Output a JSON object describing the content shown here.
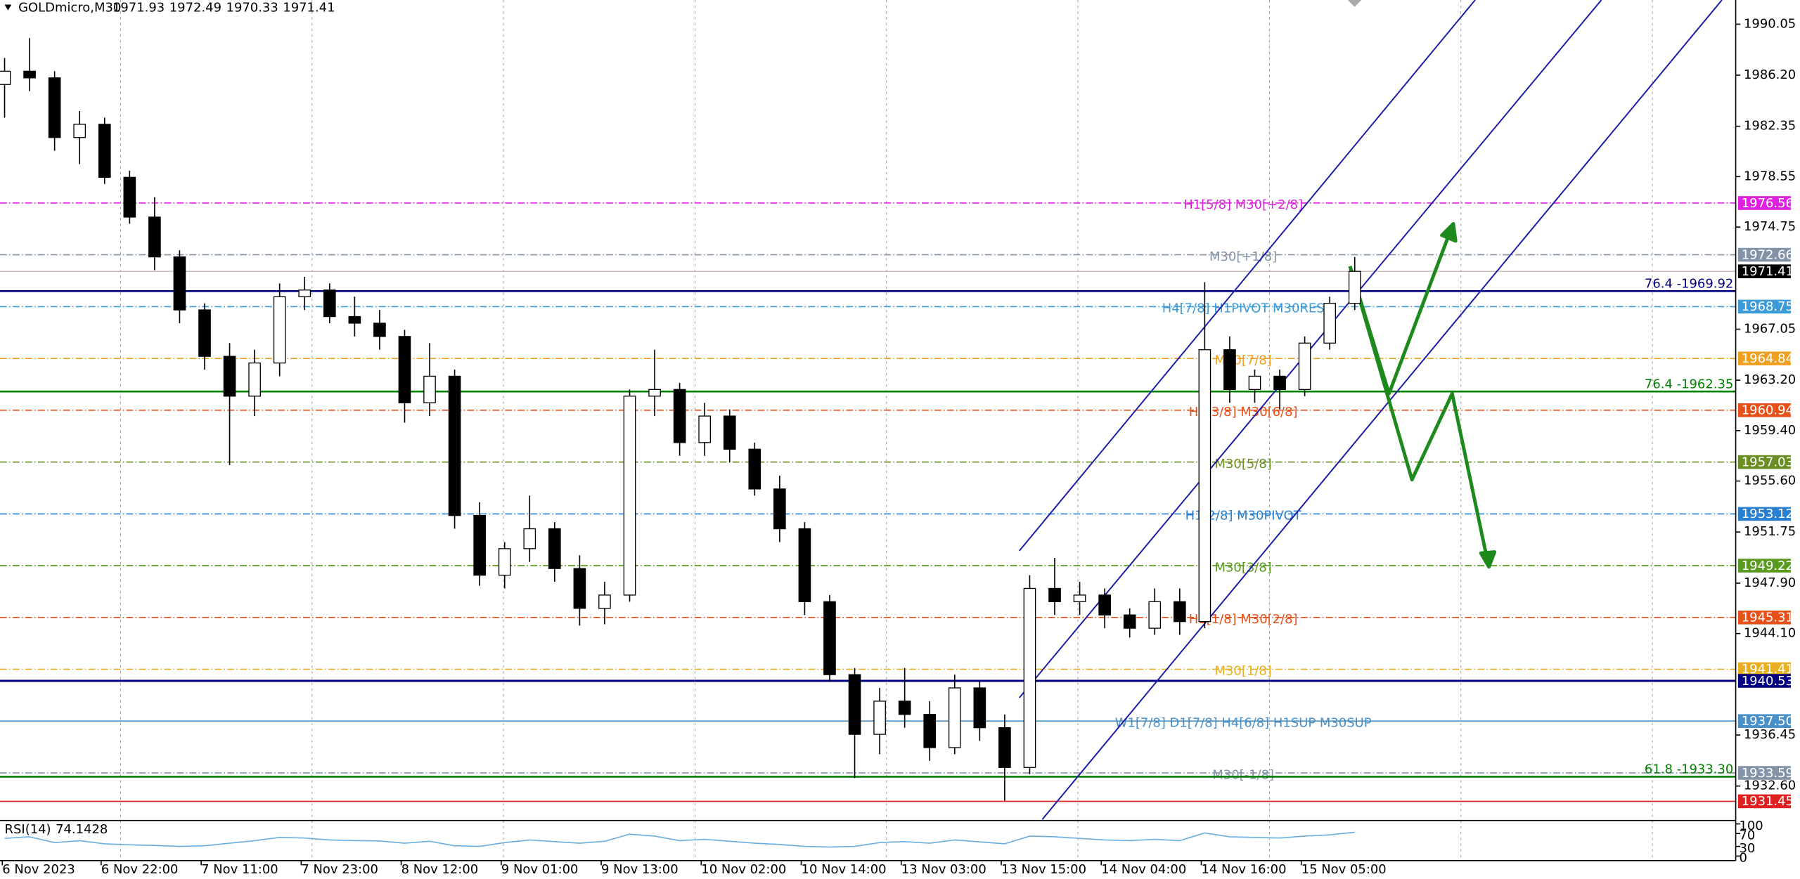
{
  "chart_data": {
    "type": "candlestick",
    "symbol": "GOLDmicro,M30",
    "ohlc_header": [
      1971.93,
      1972.49,
      1970.33,
      1971.41
    ],
    "categories": [
      "6 Nov 2023",
      null,
      null,
      null,
      "6 Nov 22:00",
      null,
      null,
      null,
      "7 Nov 11:00",
      null,
      null,
      null,
      "7 Nov 23:00",
      null,
      null,
      null,
      "8 Nov 12:00",
      null,
      null,
      null,
      "9 Nov 01:00",
      null,
      null,
      null,
      "9 Nov 13:00",
      null,
      null,
      null,
      "10 Nov 02:00",
      null,
      null,
      null,
      "10 Nov 14:00",
      null,
      null,
      null,
      "13 Nov 03:00",
      null,
      null,
      null,
      "13 Nov 15:00",
      null,
      null,
      null,
      "14 Nov 04:00",
      null,
      null,
      null,
      "14 Nov 16:00",
      null,
      null,
      null,
      "15 Nov 05:00",
      null,
      null
    ],
    "ohlc": [
      [
        1985.5,
        1987.5,
        1983.0,
        1986.5
      ],
      [
        1986.5,
        1989.0,
        1985.0,
        1986.0
      ],
      [
        1986.0,
        1986.5,
        1980.5,
        1981.5
      ],
      [
        1981.5,
        1983.5,
        1979.5,
        1982.5
      ],
      [
        1982.5,
        1983.0,
        1978.0,
        1978.5
      ],
      [
        1978.5,
        1979.0,
        1975.0,
        1975.5
      ],
      [
        1975.5,
        1977.0,
        1971.5,
        1972.5
      ],
      [
        1972.5,
        1973.0,
        1967.5,
        1968.5
      ],
      [
        1968.5,
        1969.0,
        1964.0,
        1965.0
      ],
      [
        1965.0,
        1966.0,
        1956.8,
        1962.0
      ],
      [
        1962.0,
        1965.5,
        1960.5,
        1964.5
      ],
      [
        1964.5,
        1970.5,
        1963.5,
        1969.5
      ],
      [
        1969.5,
        1971.0,
        1968.5,
        1970.0
      ],
      [
        1970.0,
        1970.5,
        1967.5,
        1968.0
      ],
      [
        1968.0,
        1969.5,
        1966.5,
        1967.5
      ],
      [
        1967.5,
        1968.5,
        1965.5,
        1966.5
      ],
      [
        1966.5,
        1967.0,
        1960.0,
        1961.5
      ],
      [
        1961.5,
        1966.0,
        1960.5,
        1963.5
      ],
      [
        1963.5,
        1964.0,
        1952.0,
        1953.0
      ],
      [
        1953.0,
        1954.0,
        1947.7,
        1948.5
      ],
      [
        1948.5,
        1951.0,
        1947.5,
        1950.5
      ],
      [
        1950.5,
        1954.5,
        1949.5,
        1952.0
      ],
      [
        1952.0,
        1952.5,
        1948.0,
        1949.0
      ],
      [
        1949.0,
        1950.0,
        1944.7,
        1946.0
      ],
      [
        1946.0,
        1948.0,
        1944.8,
        1947.0
      ],
      [
        1947.0,
        1962.5,
        1946.5,
        1962.0
      ],
      [
        1962.0,
        1965.5,
        1960.5,
        1962.5
      ],
      [
        1962.5,
        1963.0,
        1957.5,
        1958.5
      ],
      [
        1958.5,
        1961.5,
        1957.5,
        1960.5
      ],
      [
        1960.5,
        1961.0,
        1957.0,
        1958.0
      ],
      [
        1958.0,
        1958.5,
        1954.5,
        1955.0
      ],
      [
        1955.0,
        1956.0,
        1951.0,
        1952.0
      ],
      [
        1952.0,
        1952.5,
        1945.5,
        1946.5
      ],
      [
        1946.5,
        1947.0,
        1940.5,
        1941.0
      ],
      [
        1941.0,
        1941.5,
        1933.2,
        1936.5
      ],
      [
        1936.5,
        1940.0,
        1935.0,
        1939.0
      ],
      [
        1939.0,
        1941.5,
        1937.0,
        1938.0
      ],
      [
        1938.0,
        1939.0,
        1934.5,
        1935.5
      ],
      [
        1935.5,
        1941.0,
        1935.0,
        1940.0
      ],
      [
        1940.0,
        1940.5,
        1936.0,
        1937.0
      ],
      [
        1937.0,
        1938.0,
        1931.5,
        1934.0
      ],
      [
        1934.0,
        1948.5,
        1933.5,
        1947.5
      ],
      [
        1947.5,
        1949.8,
        1945.5,
        1946.5
      ],
      [
        1946.5,
        1948.0,
        1945.5,
        1947.0
      ],
      [
        1947.0,
        1947.5,
        1944.5,
        1945.5
      ],
      [
        1945.5,
        1946.0,
        1943.8,
        1944.5
      ],
      [
        1944.5,
        1947.5,
        1944.0,
        1946.5
      ],
      [
        1946.5,
        1947.5,
        1944.0,
        1945.0
      ],
      [
        1945.0,
        1970.6,
        1944.5,
        1965.5
      ],
      [
        1965.5,
        1966.5,
        1961.5,
        1962.5
      ],
      [
        1962.5,
        1964.0,
        1961.5,
        1963.5
      ],
      [
        1963.5,
        1964.0,
        1961.0,
        1962.5
      ],
      [
        1962.5,
        1966.5,
        1962.0,
        1966.0
      ],
      [
        1966.0,
        1969.5,
        1965.5,
        1969.0
      ],
      [
        1969.0,
        1972.49,
        1968.5,
        1971.41
      ]
    ],
    "ylim": [
      1930.09,
      1991.87
    ],
    "yticks": [
      1990.05,
      {
        "value": 1986.2,
        "label": "1986.20"
      },
      1982.35,
      1978.55,
      1974.75,
      1967.05,
      {
        "value": 1963.2,
        "label": "1963.20"
      },
      {
        "value": 1959.4,
        "label": "1959.40"
      },
      {
        "value": 1955.6,
        "label": "1955.60"
      },
      1951.75,
      {
        "value": 1947.9,
        "label": "1947.90"
      },
      {
        "value": 1944.1,
        "label": "1944.10"
      },
      1936.45,
      {
        "value": 1932.6,
        "label": "1932.60"
      }
    ],
    "levels": [
      {
        "value": 1976.56,
        "color": "#e020e0",
        "style": "dashdot",
        "text": "H1[5/8] M30[+2/8]"
      },
      {
        "value": 1972.66,
        "color": "#8494a8",
        "style": "dashdot",
        "text": "M30[+1/8]"
      },
      {
        "value": 1971.41,
        "color": "#000000",
        "style": "price"
      },
      {
        "value": 1968.75,
        "color": "#3c9ad8",
        "style": "dashdot",
        "text": "H4[7/8] H1PIVOT M30RES"
      },
      {
        "value": 1964.84,
        "color": "#f0a020",
        "style": "dashdot",
        "text": "M30[7/8]"
      },
      {
        "value": 1960.94,
        "color": "#e8501a",
        "style": "dashdot",
        "text": "H1[3/8] M30[6/8]"
      },
      {
        "value": 1957.03,
        "color": "#6b8e23",
        "style": "dashdot",
        "text": "M30[5/8]"
      },
      {
        "value": 1953.12,
        "color": "#2a80d0",
        "style": "dashdot",
        "text": "H1[2/8] M30PIVOT"
      },
      {
        "value": 1949.22,
        "color": "#5a9a20",
        "style": "dashdot",
        "text": "M30[3/8]"
      },
      {
        "value": 1945.31,
        "color": "#e8501a",
        "style": "dashdot",
        "text": "H1[1/8] M30[2/8]"
      },
      {
        "value": 1941.41,
        "color": "#e8b020",
        "style": "dashdot",
        "text": "M30[1/8]"
      },
      {
        "value": 1940.53,
        "color": "#000080",
        "style": "solid"
      },
      {
        "value": 1937.5,
        "value_label": "1937.50",
        "color": "#4a90c8",
        "style": "solid",
        "text": "W1[7/8] D1[7/8] H4[6/8] H1SUP M30SUP"
      },
      {
        "value": 1933.59,
        "color": "#8494a8",
        "style": "dashdot",
        "text": "M30[-1/8]"
      },
      {
        "value": 1931.45,
        "color": "#e02020",
        "style": "solid"
      }
    ],
    "fib_levels": [
      {
        "value": 1969.92,
        "text": "76.4 -1969.92",
        "color": "#000080"
      },
      {
        "value": 1962.35,
        "text": "76.4 -1962.35",
        "color": "#008000"
      },
      {
        "value": 1933.3,
        "text": "61.8 -1933.30",
        "color": "#008000"
      }
    ],
    "rsi": {
      "label": "RSI(14)",
      "value": 74.1428,
      "color": "#6aaee0",
      "ylim": [
        0,
        100
      ],
      "yticks": [
        100,
        70,
        30,
        0
      ],
      "values": [
        55,
        60,
        42,
        48,
        38,
        35,
        33,
        30,
        32,
        40,
        48,
        58,
        56,
        50,
        48,
        47,
        40,
        46,
        32,
        30,
        42,
        50,
        45,
        40,
        46,
        68,
        62,
        48,
        52,
        46,
        40,
        36,
        30,
        28,
        30,
        42,
        45,
        40,
        50,
        44,
        38,
        62,
        60,
        55,
        50,
        48,
        52,
        48,
        72,
        60,
        58,
        56,
        62,
        66,
        74.1428
      ]
    }
  }
}
